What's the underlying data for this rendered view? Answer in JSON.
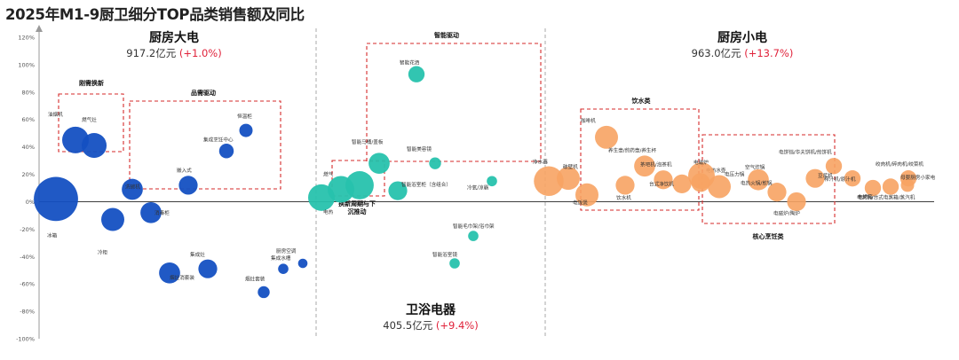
{
  "title": "2025年M1-9厨卫细分TOP品类销售额及同比",
  "colors": {
    "large": "#1450c2",
    "bath": "#27c2ad",
    "small": "#f7a363",
    "group_box": "#d62a2a",
    "divider": "#aaaaaa"
  },
  "segments": {
    "large": {
      "name": "厨房大电",
      "total": "917.2亿元",
      "change": "+1.0%"
    },
    "small": {
      "name": "厨房小电",
      "total": "963.0亿元",
      "change": "+13.7%"
    },
    "bath": {
      "name": "卫浴电器",
      "total": "405.5亿元",
      "change": "+9.4%"
    }
  },
  "groups": [
    {
      "id": "g1",
      "label": "刚需换新"
    },
    {
      "id": "g2",
      "label": "品需驱动"
    },
    {
      "id": "g3",
      "label": "智能驱动"
    },
    {
      "id": "g4",
      "label": "换新周期与下\n沉推动"
    },
    {
      "id": "g5",
      "label": "饮水类"
    },
    {
      "id": "g6",
      "label": "核心烹饪类"
    }
  ],
  "chart_data": {
    "type": "scatter",
    "title": "2025年M1-9厨卫细分TOP品类销售额及同比",
    "ylabel": "",
    "ylim": [
      -100,
      120
    ],
    "y_ticks": [
      "120%",
      "100%",
      "80%",
      "60%",
      "40%",
      "20%",
      "0%",
      "-20%",
      "-40%",
      "-60%",
      "-80%",
      "-100%"
    ],
    "series": [
      {
        "name": "厨房大电",
        "points": [
          {
            "label": "冰箱",
            "yoy": 2,
            "size": 10
          },
          {
            "label": "油烟机",
            "yoy": 45,
            "size": 4
          },
          {
            "label": "燃气灶",
            "yoy": 41,
            "size": 3.5
          },
          {
            "label": "冷柜",
            "yoy": -13,
            "size": 3
          },
          {
            "label": "洗碗机",
            "yoy": 9,
            "size": 2.5
          },
          {
            "label": "消毒柜",
            "yoy": -8,
            "size": 2.5
          },
          {
            "label": "嵌入式",
            "yoy": 12,
            "size": 2
          },
          {
            "label": "集成烹饪中心",
            "yoy": 37,
            "size": 1.2
          },
          {
            "label": "恒温柜",
            "yoy": 52,
            "size": 1
          },
          {
            "label": "烟灶消套装",
            "yoy": -52,
            "size": 2.5
          },
          {
            "label": "集成灶",
            "yoy": -49,
            "size": 2
          },
          {
            "label": "烟灶套装",
            "yoy": -66,
            "size": 0.8
          },
          {
            "label": "集成水槽",
            "yoy": -49,
            "size": 0.6
          },
          {
            "label": "厨房空调",
            "yoy": -45,
            "size": 0.5
          }
        ]
      },
      {
        "name": "卫浴电器",
        "points": [
          {
            "label": "电热",
            "yoy": 3,
            "size": 4
          },
          {
            "label": "燃气",
            "yoy": 9,
            "size": 4
          },
          {
            "label": "燃热",
            "yoy": 12,
            "size": 4.5
          },
          {
            "label": "智能马桶/盖板",
            "yoy": 28,
            "size": 2.5
          },
          {
            "label": "智能浴室柜（含组合）",
            "yoy": 8,
            "size": 2
          },
          {
            "label": "智能花洒",
            "yoy": 93,
            "size": 1.5
          },
          {
            "label": "智能美容镜",
            "yoy": 28,
            "size": 0.8
          },
          {
            "label": "冷氧/凉霸",
            "yoy": 15,
            "size": 0.6
          },
          {
            "label": "智能毛巾架/浴巾架",
            "yoy": -25,
            "size": 0.6
          },
          {
            "label": "智能浴室镜",
            "yoy": -45,
            "size": 0.6
          }
        ]
      },
      {
        "name": "厨房小电",
        "points": [
          {
            "label": "净水器",
            "yoy": 15,
            "size": 5
          },
          {
            "label": "破壁机",
            "yoy": 17,
            "size": 3
          },
          {
            "label": "电饭煲",
            "yoy": 5,
            "size": 3
          },
          {
            "label": "咖啡机",
            "yoy": 47,
            "size": 3
          },
          {
            "label": "养生壶/煎药壶/养生杯",
            "yoy": 26,
            "size": 2.5
          },
          {
            "label": "饮水机",
            "yoy": 12,
            "size": 2
          },
          {
            "label": "茶吧机/泡茶机",
            "yoy": 16,
            "size": 2
          },
          {
            "label": "台式净饮机",
            "yoy": 13,
            "size": 2
          },
          {
            "label": "电热水壶",
            "yoy": 14,
            "size": 2
          },
          {
            "label": "电磁炉",
            "yoy": 19,
            "size": 4
          },
          {
            "label": "电压力锅",
            "yoy": 11,
            "size": 3
          },
          {
            "label": "空气炸锅",
            "yoy": 16,
            "size": 2.5
          },
          {
            "label": "电热火锅/煎锅",
            "yoy": 7,
            "size": 2
          },
          {
            "label": "电磁炉/陶炉",
            "yoy": 0,
            "size": 2
          },
          {
            "label": "电饼铛/华夫饼机/煎饼机",
            "yoy": 26,
            "size": 1.5
          },
          {
            "label": "豆浆机",
            "yoy": 17,
            "size": 2
          },
          {
            "label": "榨汁机/原汁机",
            "yoy": 17,
            "size": 1.5
          },
          {
            "label": "电烤箱",
            "yoy": 10,
            "size": 1.5
          },
          {
            "label": "电蒸锅/台式电蒸箱/蒸汽机",
            "yoy": 11,
            "size": 1.5
          },
          {
            "label": "绞肉机/碎肉机/绞菜机",
            "yoy": 17,
            "size": 1.5
          },
          {
            "label": "母婴厨房小家电",
            "yoy": 12,
            "size": 1
          }
        ]
      }
    ]
  }
}
